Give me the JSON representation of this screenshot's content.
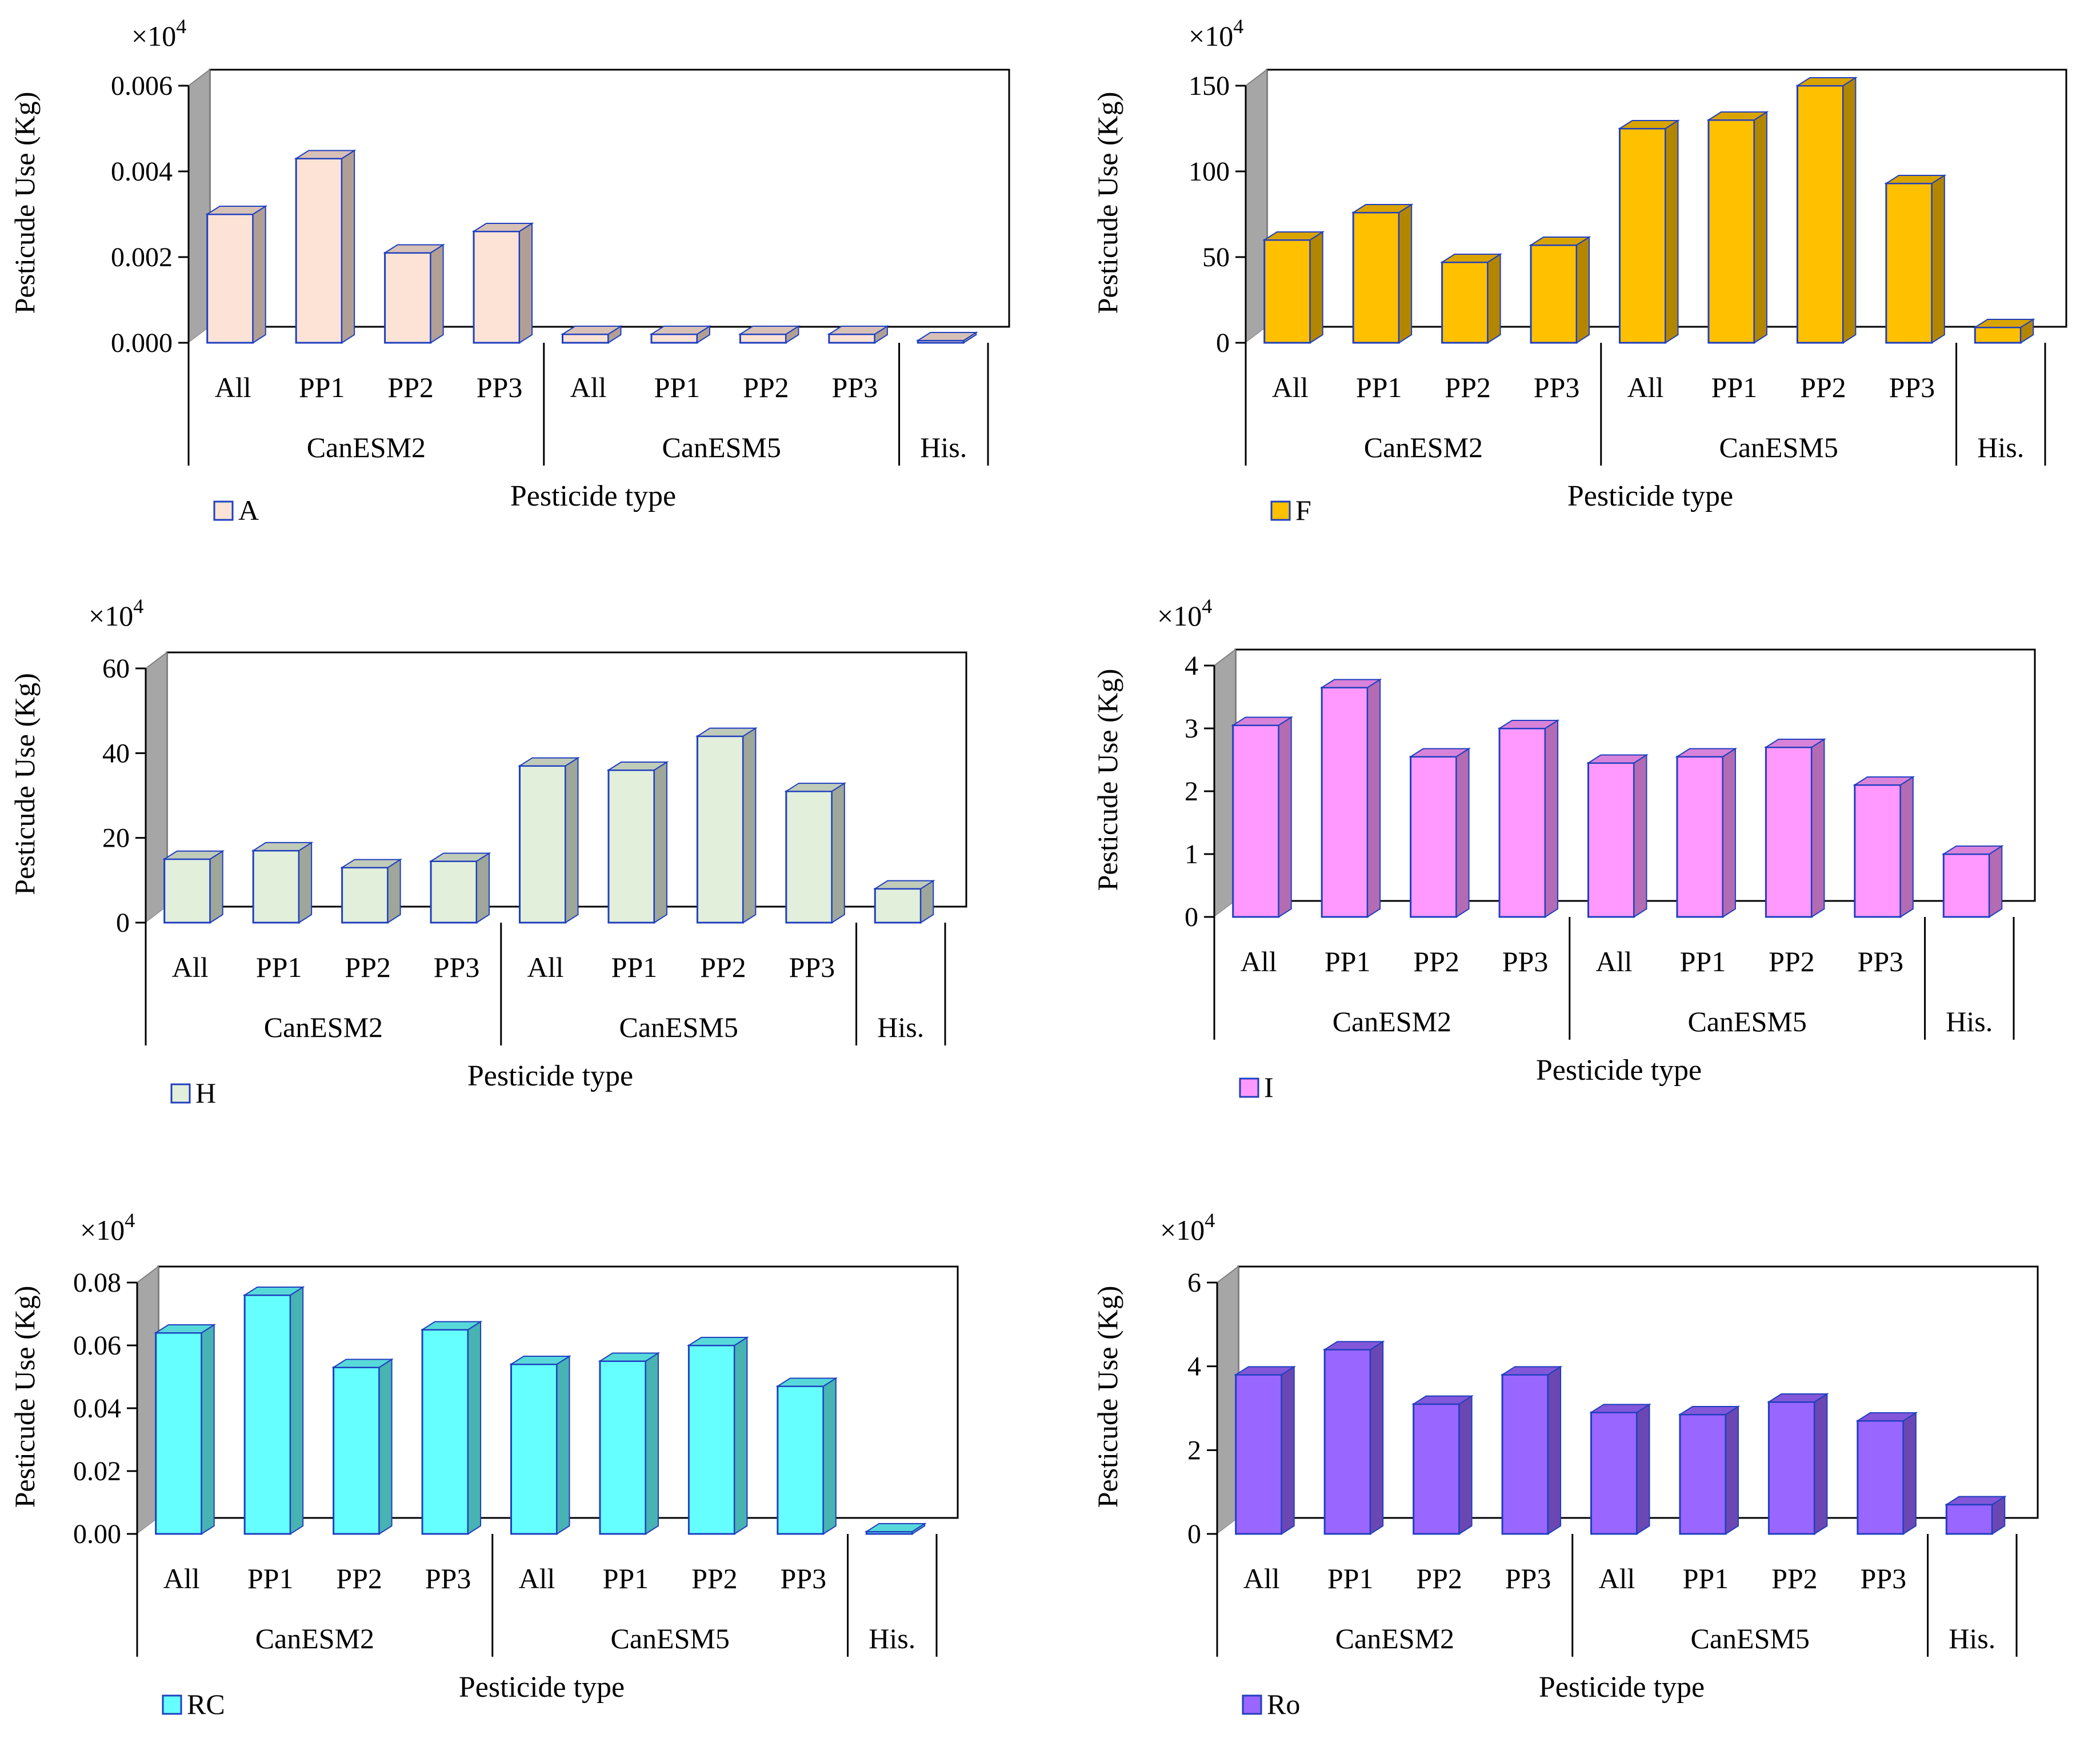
{
  "chart_data": [
    {
      "type": "bar",
      "multiplier": "×10",
      "multiplier_exp": "4",
      "ylabel": "Pesticude Use (Kg)",
      "xlabel": "Pesticide type",
      "categories": [
        "All",
        "PP1",
        "PP2",
        "PP3",
        "All",
        "PP1",
        "PP2",
        "PP3",
        ""
      ],
      "groups": [
        "CanESM2",
        "CanESM5",
        "His."
      ],
      "ylim": [
        0,
        0.006
      ],
      "yticks": [
        "0.000",
        "0.002",
        "0.004",
        "0.006"
      ],
      "legend": "A",
      "color": "#fde3d6",
      "values": [
        0.003,
        0.0043,
        0.0021,
        0.0026,
        0.0002,
        0.0002,
        0.0002,
        0.0002,
        0.0
      ]
    },
    {
      "type": "bar",
      "multiplier": "×10",
      "multiplier_exp": "4",
      "ylabel": "Pesticude Use (Kg)",
      "xlabel": "Pesticide type",
      "categories": [
        "All",
        "PP1",
        "PP2",
        "PP3",
        "All",
        "PP1",
        "PP2",
        "PP3",
        ""
      ],
      "groups": [
        "CanESM2",
        "CanESM5",
        "His."
      ],
      "ylim": [
        0,
        150
      ],
      "yticks": [
        "0",
        "50",
        "100",
        "150"
      ],
      "legend": "F",
      "color": "#ffc000",
      "values": [
        60,
        76,
        47,
        57,
        125,
        130,
        150,
        93,
        9
      ]
    },
    {
      "type": "bar",
      "multiplier": "×10",
      "multiplier_exp": "4",
      "ylabel": "Pesticude Use (Kg)",
      "xlabel": "Pesticide type",
      "categories": [
        "All",
        "PP1",
        "PP2",
        "PP3",
        "All",
        "PP1",
        "PP2",
        "PP3",
        ""
      ],
      "groups": [
        "CanESM2",
        "CanESM5",
        "His."
      ],
      "ylim": [
        0,
        60
      ],
      "yticks": [
        "0",
        "20",
        "40",
        "60"
      ],
      "legend": "H",
      "color": "#e2efda",
      "values": [
        15,
        17,
        13,
        14.5,
        37,
        36,
        44,
        31,
        8
      ]
    },
    {
      "type": "bar",
      "multiplier": "×10",
      "multiplier_exp": "4",
      "ylabel": "Pesticude Use (Kg)",
      "xlabel": "Pesticide type",
      "categories": [
        "All",
        "PP1",
        "PP2",
        "PP3",
        "All",
        "PP1",
        "PP2",
        "PP3",
        ""
      ],
      "groups": [
        "CanESM2",
        "CanESM5",
        "His."
      ],
      "ylim": [
        0,
        4
      ],
      "yticks": [
        "0",
        "1",
        "2",
        "3",
        "4"
      ],
      "legend": "I",
      "color": "#ff99ff",
      "values": [
        3.05,
        3.65,
        2.55,
        3.0,
        2.45,
        2.55,
        2.7,
        2.1,
        1.0
      ]
    },
    {
      "type": "bar",
      "multiplier": "×10",
      "multiplier_exp": "4",
      "ylabel": "Pesticude Use (Kg)",
      "xlabel": "Pesticide type",
      "categories": [
        "All",
        "PP1",
        "PP2",
        "PP3",
        "All",
        "PP1",
        "PP2",
        "PP3",
        ""
      ],
      "groups": [
        "CanESM2",
        "CanESM5",
        "His."
      ],
      "ylim": [
        0,
        0.08
      ],
      "yticks": [
        "0.00",
        "0.02",
        "0.04",
        "0.06",
        "0.08"
      ],
      "legend": "RC",
      "color": "#66ffff",
      "values": [
        0.064,
        0.076,
        0.053,
        0.065,
        0.054,
        0.055,
        0.06,
        0.047,
        0.0003
      ]
    },
    {
      "type": "bar",
      "multiplier": "×10",
      "multiplier_exp": "4",
      "ylabel": "Pesticude Use (Kg)",
      "xlabel": "Pesticide type",
      "categories": [
        "All",
        "PP1",
        "PP2",
        "PP3",
        "All",
        "PP1",
        "PP2",
        "PP3",
        ""
      ],
      "groups": [
        "CanESM2",
        "CanESM5",
        "His."
      ],
      "ylim": [
        0,
        6
      ],
      "yticks": [
        "0",
        "2",
        "4",
        "6"
      ],
      "legend": "Ro",
      "color": "#9966ff",
      "values": [
        3.8,
        4.4,
        3.1,
        3.8,
        2.9,
        2.85,
        3.15,
        2.7,
        0.7
      ]
    }
  ]
}
